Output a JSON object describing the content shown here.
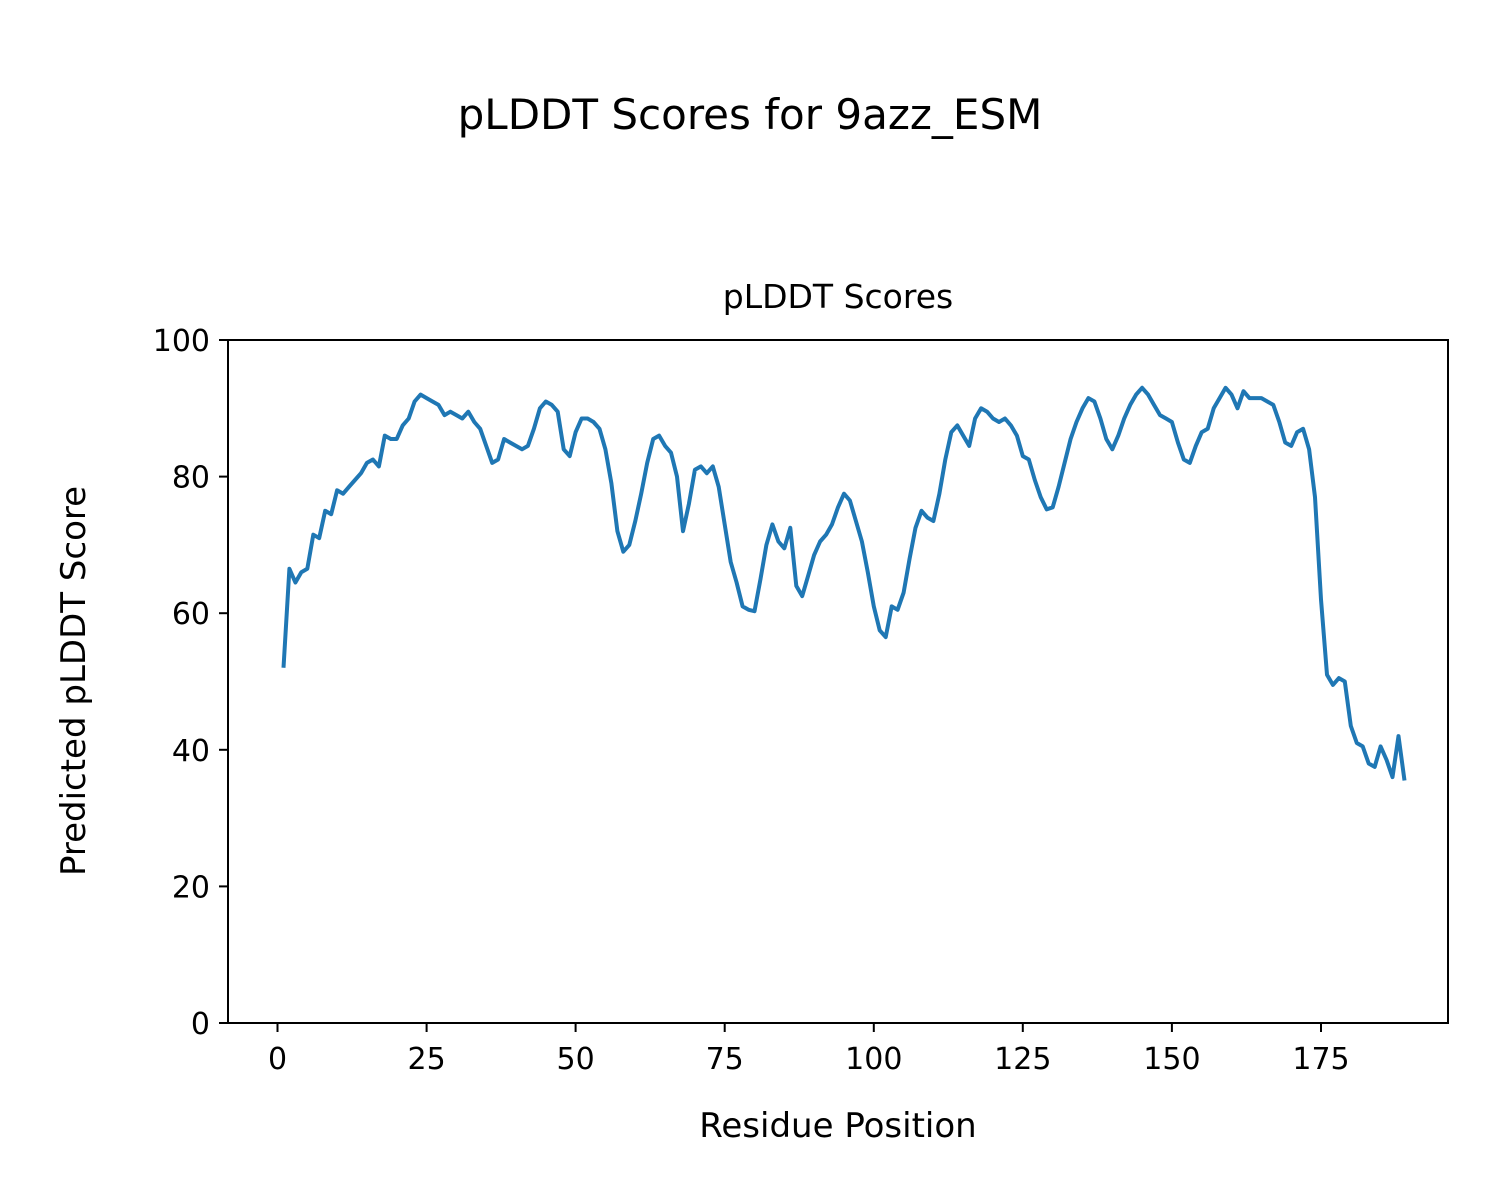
{
  "figure": {
    "title": "pLDDT Scores for 9azz_ESM"
  },
  "chart_data": {
    "type": "line",
    "title": "pLDDT Scores",
    "xlabel": "Residue Position",
    "ylabel": "Predicted pLDDT Score",
    "x_ticks": [
      0,
      25,
      50,
      75,
      100,
      125,
      150,
      175
    ],
    "y_ticks": [
      0,
      20,
      40,
      60,
      80,
      100
    ],
    "xlim": [
      -8.3,
      196.3
    ],
    "ylim": [
      0,
      100
    ],
    "grid": false,
    "legend": "none",
    "line_color": "#1f77b4",
    "line_width": 4,
    "series": [
      {
        "name": "pLDDT",
        "x_start": 1,
        "values": [
          52,
          66.5,
          64.5,
          66,
          66.5,
          71.5,
          71,
          75,
          74.5,
          78,
          77.5,
          78.5,
          79.5,
          80.5,
          82,
          82.5,
          81.5,
          86,
          85.5,
          85.5,
          87.5,
          88.5,
          91,
          92,
          91.5,
          91,
          90.5,
          89,
          89.5,
          89,
          88.5,
          89.5,
          88,
          87,
          84.5,
          82,
          82.5,
          85.5,
          85,
          84.5,
          84,
          84.5,
          87,
          90,
          91,
          90.5,
          89.5,
          84,
          83,
          86.5,
          88.5,
          88.5,
          88,
          87,
          84,
          79,
          72,
          69,
          70,
          73.5,
          77.5,
          82,
          85.5,
          86,
          84.5,
          83.5,
          80,
          72,
          76,
          81,
          81.5,
          80.5,
          81.5,
          78.5,
          73,
          67.5,
          64.5,
          61,
          60.5,
          60.3,
          65,
          70,
          73,
          70.5,
          69.5,
          72.5,
          64,
          62.5,
          65.5,
          68.5,
          70.5,
          71.5,
          73,
          75.5,
          77.5,
          76.5,
          73.5,
          70.5,
          66,
          61,
          57.5,
          56.5,
          61,
          60.5,
          63,
          68,
          72.5,
          75,
          74,
          73.5,
          77.5,
          82.5,
          86.5,
          87.5,
          86,
          84.5,
          88.5,
          90,
          89.5,
          88.5,
          88,
          88.5,
          87.5,
          86,
          83,
          82.5,
          79.5,
          77,
          75.2,
          75.5,
          78.5,
          82,
          85.5,
          88,
          90,
          91.5,
          91,
          88.5,
          85.5,
          84,
          86,
          88.5,
          90.5,
          92,
          93,
          92,
          90.5,
          89,
          88.5,
          88,
          85,
          82.5,
          82,
          84.5,
          86.5,
          87,
          90,
          91.5,
          93,
          92,
          90,
          92.5,
          91.5,
          91.5,
          91.5,
          91,
          90.5,
          88,
          85,
          84.5,
          86.5,
          87,
          84,
          77,
          62,
          51,
          49.5,
          50.5,
          50,
          43.5,
          41,
          40.5,
          38,
          37.5,
          40.5,
          38.5,
          36,
          42,
          35.5
        ]
      }
    ]
  }
}
